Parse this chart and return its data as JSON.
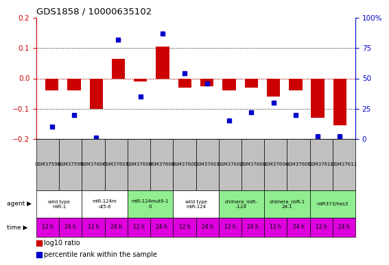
{
  "title": "GDS1858 / 10000635102",
  "samples": [
    "GSM37598",
    "GSM37599",
    "GSM37606",
    "GSM37607",
    "GSM37608",
    "GSM37609",
    "GSM37600",
    "GSM37601",
    "GSM37602",
    "GSM37603",
    "GSM37604",
    "GSM37605",
    "GSM37610",
    "GSM37611"
  ],
  "log10_ratio": [
    -0.04,
    -0.04,
    -0.1,
    0.065,
    -0.01,
    0.105,
    -0.03,
    -0.025,
    -0.04,
    -0.03,
    -0.06,
    -0.04,
    -0.13,
    -0.155
  ],
  "percentile_rank": [
    10,
    20,
    1,
    82,
    35,
    87,
    54,
    46,
    15,
    22,
    30,
    20,
    2,
    2
  ],
  "agents": [
    {
      "label": "wild type\nmiR-1",
      "cols": [
        0,
        1
      ],
      "color": "#ffffff"
    },
    {
      "label": "miR-124m\nut5-6",
      "cols": [
        2,
        3
      ],
      "color": "#ffffff"
    },
    {
      "label": "miR-124mut9-1\n0",
      "cols": [
        4,
        5
      ],
      "color": "#90ee90"
    },
    {
      "label": "wild type\nmiR-124",
      "cols": [
        6,
        7
      ],
      "color": "#ffffff"
    },
    {
      "label": "chimera_miR-\n-124",
      "cols": [
        8,
        9
      ],
      "color": "#90ee90"
    },
    {
      "label": "chimera_miR-1\n24-1",
      "cols": [
        10,
        11
      ],
      "color": "#90ee90"
    },
    {
      "label": "miR373/hes3",
      "cols": [
        12,
        13
      ],
      "color": "#90ee90"
    }
  ],
  "time_labels": [
    "12 h",
    "24 h",
    "12 h",
    "24 h",
    "12 h",
    "24 h",
    "12 h",
    "24 h",
    "12 h",
    "24 h",
    "12 h",
    "24 h",
    "12 h",
    "24 h"
  ],
  "bar_color": "#cc0000",
  "dot_color": "#0000cc",
  "ylim_left": [
    -0.2,
    0.2
  ],
  "ylim_right": [
    0,
    100
  ],
  "yticks_left": [
    -0.2,
    -0.1,
    0.0,
    0.1,
    0.2
  ],
  "yticks_right": [
    0,
    25,
    50,
    75,
    100
  ],
  "sample_bg": "#c0c0c0",
  "time_bg": "#dd00dd",
  "agent_white": "#ffffff",
  "agent_green": "#90ee90",
  "legend_red": "#cc0000",
  "legend_blue": "#0000cc"
}
